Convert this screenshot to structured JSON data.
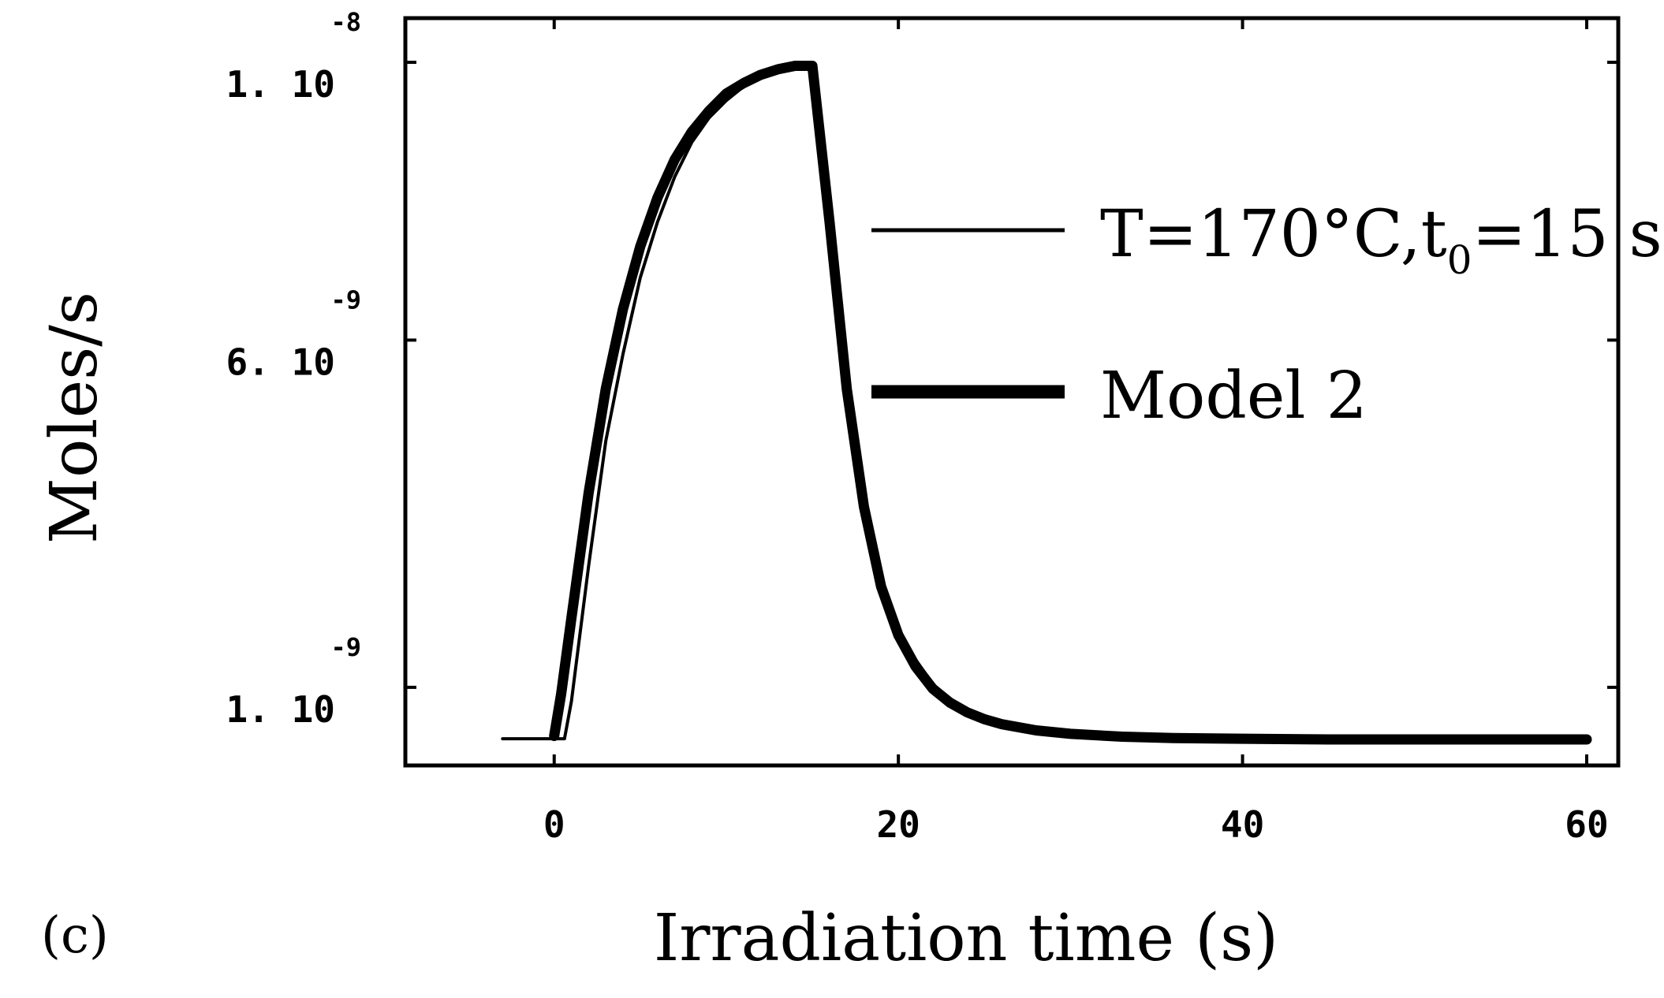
{
  "chart_data": {
    "type": "line",
    "panel_label": "(c)",
    "xlabel": "Irradiation time (s)",
    "ylabel": "Moles/s",
    "xlim": [
      -7,
      60
    ],
    "ylim": [
      0,
      1.05e-08
    ],
    "x_ticks": [
      {
        "value": 0,
        "label": "0"
      },
      {
        "value": 20,
        "label": "20"
      },
      {
        "value": 40,
        "label": "40"
      },
      {
        "value": 60,
        "label": "60"
      }
    ],
    "y_ticks": [
      {
        "value": 1e-09,
        "mantissa": "1. 10",
        "exponent": "-9"
      },
      {
        "value": 6e-09,
        "mantissa": "6. 10",
        "exponent": "-9"
      },
      {
        "value": 1e-08,
        "mantissa": "1. 10",
        "exponent": "-8"
      }
    ],
    "series": [
      {
        "name": "T=170°C,t0=15 s",
        "name_main": "T=170°C,t",
        "name_sub": "0",
        "name_tail": "=15 s",
        "style": "thin",
        "x": [
          -3,
          -0.2,
          0.6,
          1,
          2,
          3,
          4,
          5,
          6,
          7,
          8,
          9,
          10,
          11,
          12,
          13,
          14,
          15,
          16,
          17,
          18,
          19,
          20,
          21,
          22,
          23,
          24,
          25,
          26,
          28,
          30,
          33,
          36,
          40,
          45,
          50,
          55,
          60
        ],
        "y": [
          2.6e-10,
          2.6e-10,
          2.6e-10,
          8e-10,
          2.75e-09,
          4.55e-09,
          5.8e-09,
          6.9e-09,
          7.7e-09,
          8.35e-09,
          8.85e-09,
          9.2e-09,
          9.45e-09,
          9.65e-09,
          9.8e-09,
          9.9e-09,
          9.95e-09,
          9.95e-09,
          8e-09,
          5.6e-09,
          3.8e-09,
          2.6e-09,
          1.85e-09,
          1.4e-09,
          1.05e-09,
          8.2e-10,
          6.7e-10,
          5.6e-10,
          4.8e-10,
          3.9e-10,
          3.4e-10,
          3e-10,
          2.8e-10,
          2.65e-10,
          2.6e-10,
          2.55e-10,
          2.5e-10,
          2.5e-10
        ]
      },
      {
        "name": "Model 2",
        "style": "thick",
        "x": [
          0,
          0.4,
          1,
          2,
          3,
          4,
          5,
          6,
          7,
          8,
          9,
          10,
          11,
          12,
          13,
          14,
          15,
          16,
          17,
          18,
          19,
          20,
          21,
          22,
          23,
          24,
          25,
          26,
          28,
          30,
          33,
          36,
          40,
          45,
          50,
          55,
          60
        ],
        "y": [
          3e-10,
          9e-10,
          2e-09,
          3.8e-09,
          5.3e-09,
          6.45e-09,
          7.35e-09,
          8.05e-09,
          8.6e-09,
          9e-09,
          9.3e-09,
          9.55e-09,
          9.7e-09,
          9.82e-09,
          9.9e-09,
          9.95e-09,
          9.95e-09,
          7.7e-09,
          5.3e-09,
          3.6e-09,
          2.45e-09,
          1.75e-09,
          1.3e-09,
          9.8e-10,
          7.8e-10,
          6.4e-10,
          5.4e-10,
          4.7e-10,
          3.8e-10,
          3.3e-10,
          2.9e-10,
          2.7e-10,
          2.6e-10,
          2.5e-10,
          2.5e-10,
          2.5e-10,
          2.5e-10
        ]
      }
    ]
  }
}
